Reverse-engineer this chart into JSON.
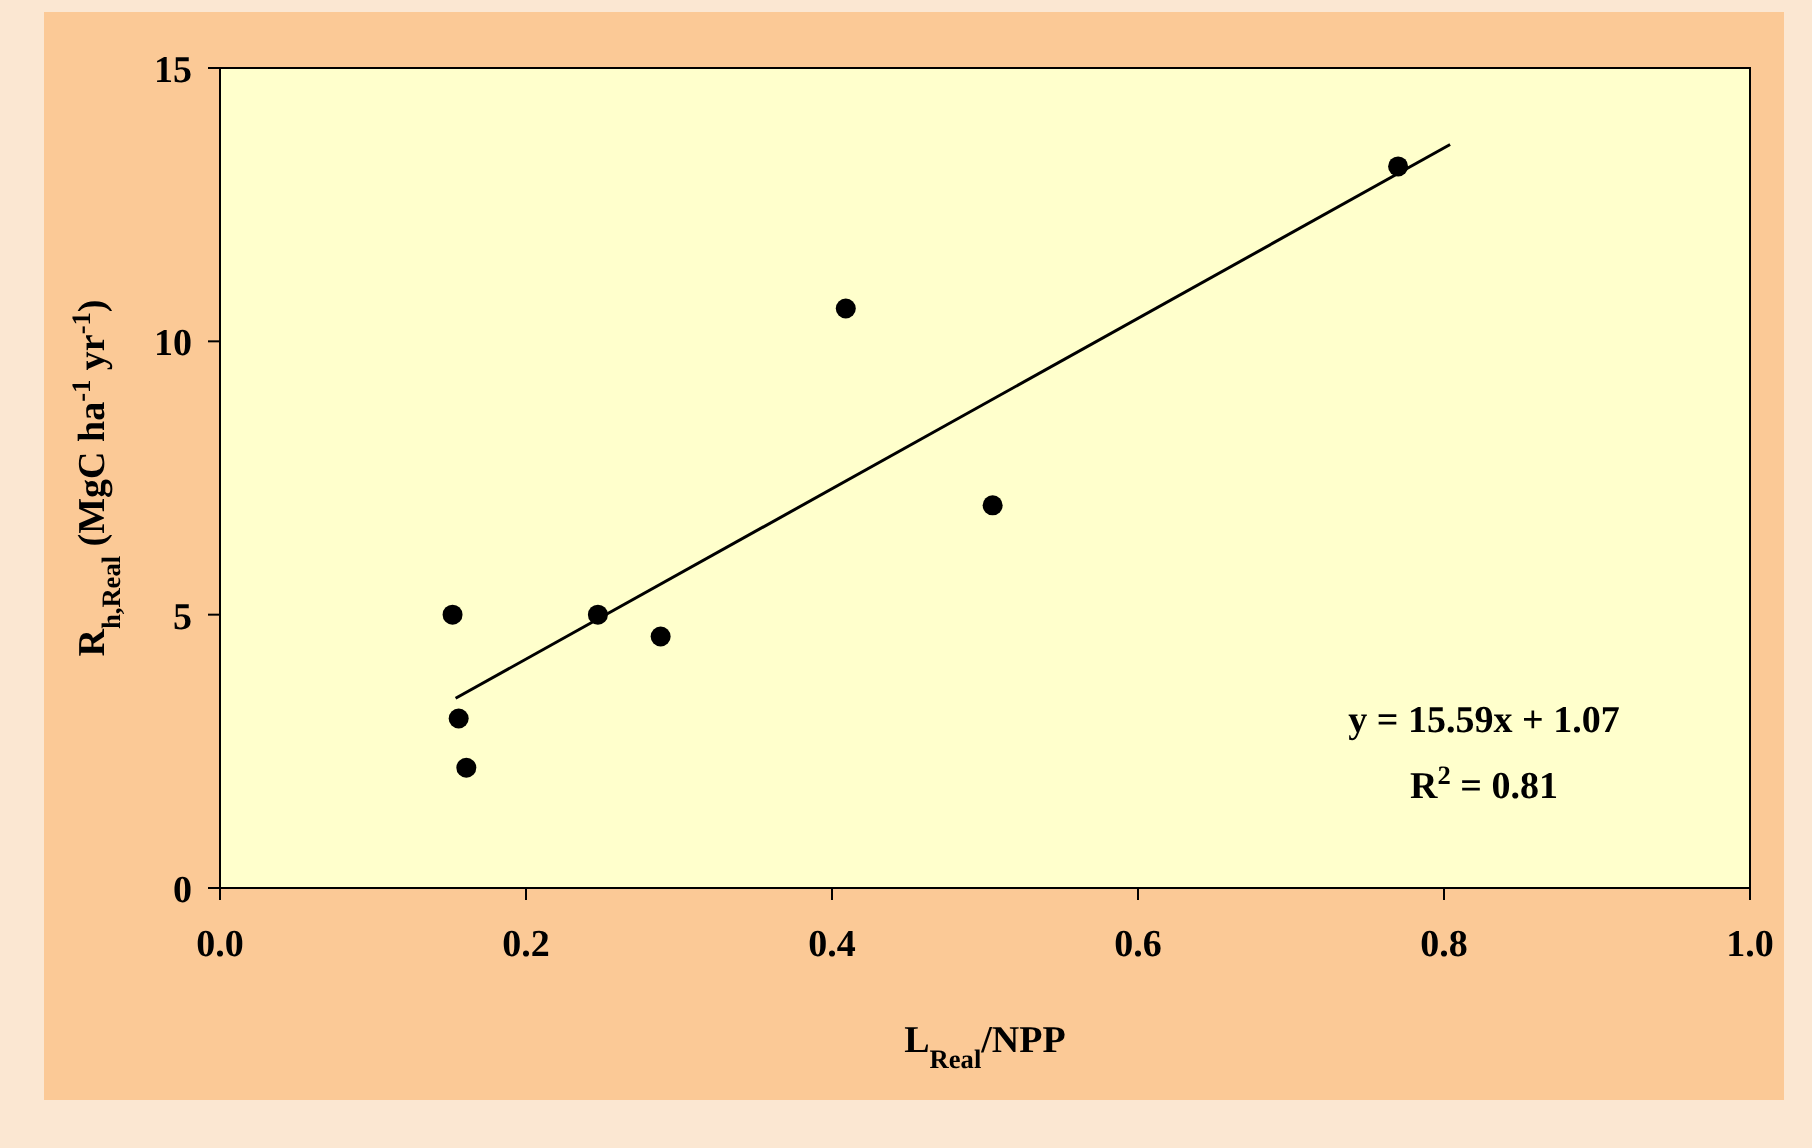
{
  "chart_data": {
    "type": "scatter",
    "xlabel": "L$_{Real}$/NPP",
    "ylabel": "R$_{h,Real}$ (MgC ha$^{-1}$ yr$^{-1}$)",
    "xlim": [
      0,
      1
    ],
    "xticks": [
      {
        "value": 0,
        "label": "0.0"
      },
      {
        "value": 0.2,
        "label": "0.2"
      },
      {
        "value": 0.4,
        "label": "0.4"
      },
      {
        "value": 0.6,
        "label": "0.6"
      },
      {
        "value": 0.8,
        "label": "0.8"
      },
      {
        "value": 1,
        "label": "1.0"
      }
    ],
    "ylim": [
      0,
      15
    ],
    "yticks": [
      0,
      5,
      10,
      15
    ],
    "grid": false,
    "series": [
      {
        "marker": "circle",
        "color": "#000000",
        "x": [
          0.152,
          0.156,
          0.161,
          0.247,
          0.288,
          0.409,
          0.505,
          0.77
        ],
        "values": [
          5.0,
          3.1,
          2.2,
          5.0,
          4.6,
          10.6,
          7.0,
          13.2
        ]
      },
      {
        "type": "line",
        "color": "#000000",
        "x": [
          0.154,
          0.804
        ],
        "values": [
          3.47,
          13.6
        ]
      }
    ],
    "annotations": [
      "y = 15.59x + 1.07",
      "R$^{2}$ = 0.81"
    ]
  }
}
